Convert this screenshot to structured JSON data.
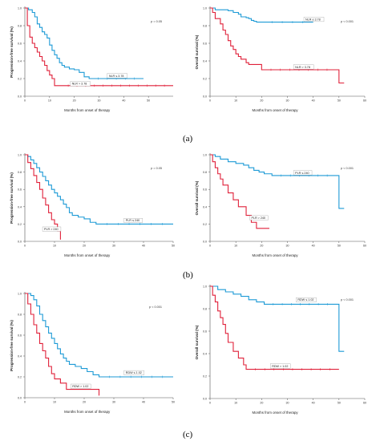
{
  "panel_labels": [
    "(a)",
    "(b)",
    "(c)"
  ],
  "colors": {
    "blue": "#1c9ad6",
    "red": "#e0213a"
  },
  "chart_data": [
    {
      "type": "line",
      "id": "a_pfs",
      "xlabel": "Months from onset of therapy",
      "ylabel": "Progression-free survival (%)",
      "xlim": [
        0,
        60
      ],
      "ylim": [
        0,
        1.0
      ],
      "xticks": [
        0,
        10,
        20,
        30,
        40,
        50
      ],
      "yticks": [
        0,
        0.2,
        0.4,
        0.6,
        0.8,
        1.0
      ],
      "xtick_labels": [
        "0",
        "10",
        "20",
        "30",
        "40",
        "50"
      ],
      "ytick_labels": [
        "0.0",
        "0.2",
        "0.4",
        "0.6",
        "0.8",
        "1.0"
      ],
      "pvalue": "p = 0.05",
      "series": [
        {
          "name": "NLR ≤ 3.78",
          "color": "blue",
          "label_at": [
            34,
            0.22
          ],
          "x": [
            0,
            1.5,
            3,
            4,
            5,
            6,
            7,
            8,
            9,
            10,
            11,
            12,
            13,
            14,
            15,
            16,
            18,
            20,
            22,
            24,
            26,
            48
          ],
          "y": [
            1.0,
            0.98,
            0.95,
            0.9,
            0.82,
            0.78,
            0.73,
            0.7,
            0.66,
            0.58,
            0.52,
            0.47,
            0.43,
            0.38,
            0.35,
            0.33,
            0.31,
            0.3,
            0.27,
            0.22,
            0.2,
            0.2
          ]
        },
        {
          "name": "NLR > 3.78",
          "color": "red",
          "label_at": [
            19,
            0.13
          ],
          "x": [
            0,
            1,
            2,
            3,
            4,
            5,
            6,
            7,
            8,
            9,
            10,
            11,
            12,
            14,
            60
          ],
          "y": [
            1.0,
            0.8,
            0.67,
            0.6,
            0.55,
            0.5,
            0.45,
            0.4,
            0.35,
            0.29,
            0.24,
            0.2,
            0.12,
            0.12,
            0.12
          ]
        }
      ]
    },
    {
      "type": "line",
      "id": "a_os",
      "xlabel": "Months from onset of therapy",
      "ylabel": "Overall survival (%)",
      "xlim": [
        0,
        60
      ],
      "ylim": [
        0,
        1.0
      ],
      "xticks": [
        0,
        10,
        20,
        30,
        40,
        50,
        60
      ],
      "yticks": [
        0,
        0.2,
        0.4,
        0.6,
        0.8,
        1.0
      ],
      "xtick_labels": [
        "0",
        "10",
        "20",
        "30",
        "40",
        "50",
        "60"
      ],
      "ytick_labels": [
        "0.0",
        "0.2",
        "0.4",
        "0.6",
        "0.8",
        "1.0"
      ],
      "pvalue": "p < 0.001",
      "series": [
        {
          "name": "NLR ≤ 3.78",
          "color": "blue",
          "label_at": [
            37,
            0.86
          ],
          "x": [
            0,
            2,
            7,
            9,
            11,
            12,
            14,
            15,
            16,
            17,
            18,
            20,
            40
          ],
          "y": [
            1.0,
            0.98,
            0.97,
            0.95,
            0.93,
            0.9,
            0.89,
            0.88,
            0.86,
            0.85,
            0.84,
            0.84,
            0.84
          ]
        },
        {
          "name": "NLR > 3.78",
          "color": "red",
          "label_at": [
            33,
            0.32
          ],
          "x": [
            0,
            1,
            2,
            4,
            5,
            6,
            7,
            8,
            9,
            10,
            11,
            12,
            14,
            15,
            16,
            20,
            49,
            50,
            52
          ],
          "y": [
            1.0,
            0.95,
            0.88,
            0.82,
            0.75,
            0.7,
            0.63,
            0.57,
            0.53,
            0.48,
            0.45,
            0.42,
            0.38,
            0.36,
            0.36,
            0.3,
            0.3,
            0.15,
            0.15
          ]
        }
      ]
    },
    {
      "type": "line",
      "id": "b_pfs",
      "xlabel": "Months from onset of therapy",
      "ylabel": "Progression-free survival (%)",
      "xlim": [
        0,
        50
      ],
      "ylim": [
        0,
        1.0
      ],
      "xticks": [
        0,
        10,
        20,
        30,
        40,
        50
      ],
      "yticks": [
        0,
        0.2,
        0.4,
        0.6,
        0.8,
        1.0
      ],
      "xtick_labels": [
        "0",
        "10",
        "20",
        "30",
        "40",
        "50"
      ],
      "ytick_labels": [
        "0.0",
        "0.2",
        "0.4",
        "0.6",
        "0.8",
        "1.0"
      ],
      "pvalue": "p = 0.05",
      "series": [
        {
          "name": "PLR ≤ 240",
          "color": "blue",
          "label_at": [
            34,
            0.23
          ],
          "x": [
            0,
            1,
            2,
            3,
            4,
            5,
            6,
            7,
            8,
            9,
            10,
            11,
            12,
            13,
            14,
            15,
            16,
            18,
            20,
            22,
            24,
            50
          ],
          "y": [
            1.0,
            0.98,
            0.94,
            0.9,
            0.85,
            0.8,
            0.75,
            0.7,
            0.65,
            0.6,
            0.56,
            0.52,
            0.48,
            0.43,
            0.39,
            0.33,
            0.3,
            0.28,
            0.26,
            0.22,
            0.2,
            0.2
          ]
        },
        {
          "name": "PLR > 240",
          "color": "red",
          "label_at": [
            6.5,
            0.13
          ],
          "x": [
            0,
            1,
            2,
            3,
            4,
            5,
            6,
            7,
            8,
            9,
            10,
            11,
            12
          ],
          "y": [
            1.0,
            0.91,
            0.84,
            0.76,
            0.68,
            0.6,
            0.5,
            0.42,
            0.33,
            0.25,
            0.2,
            0.12,
            0.02
          ]
        }
      ]
    },
    {
      "type": "line",
      "id": "b_os",
      "xlabel": "Months from onset of therapy",
      "ylabel": "Overall survival (%)",
      "xlim": [
        0,
        60
      ],
      "ylim": [
        0,
        1.0
      ],
      "xticks": [
        0,
        10,
        20,
        30,
        40,
        50,
        60
      ],
      "yticks": [
        0,
        0.2,
        0.4,
        0.6,
        0.8,
        1.0
      ],
      "xtick_labels": [
        "0",
        "10",
        "20",
        "30",
        "40",
        "50",
        "60"
      ],
      "ytick_labels": [
        "0.0",
        "0.2",
        "0.4",
        "0.6",
        "0.8",
        "1.0"
      ],
      "pvalue": "p < 0.001",
      "series": [
        {
          "name": "PLR ≤ 240",
          "color": "blue",
          "label_at": [
            33,
            0.78
          ],
          "x": [
            0,
            2,
            4,
            7,
            10,
            13,
            15,
            17,
            19,
            21,
            24,
            49,
            50,
            52
          ],
          "y": [
            1.0,
            0.98,
            0.95,
            0.92,
            0.9,
            0.88,
            0.85,
            0.82,
            0.8,
            0.78,
            0.76,
            0.76,
            0.38,
            0.38
          ]
        },
        {
          "name": "PLR > 240",
          "color": "red",
          "label_at": [
            16,
            0.26
          ],
          "x": [
            0,
            1,
            2,
            3,
            4,
            5,
            7,
            9,
            11,
            14,
            16,
            18,
            23
          ],
          "y": [
            1.0,
            0.92,
            0.85,
            0.78,
            0.72,
            0.65,
            0.56,
            0.48,
            0.4,
            0.3,
            0.22,
            0.15,
            0.15
          ]
        }
      ]
    },
    {
      "type": "line",
      "id": "c_pfs",
      "xlabel": "Months from onset of therapy",
      "ylabel": "Progression-free survival (%)",
      "xlim": [
        0,
        50
      ],
      "ylim": [
        0,
        1.0
      ],
      "xticks": [
        0,
        10,
        20,
        30,
        40,
        50
      ],
      "yticks": [
        0,
        0.2,
        0.4,
        0.6,
        0.8,
        1.0
      ],
      "xtick_labels": [
        "0",
        "10",
        "20",
        "30",
        "40",
        "50"
      ],
      "ytick_labels": [
        "0.0",
        "0.2",
        "0.4",
        "0.6",
        "0.8",
        "1.0"
      ],
      "pvalue": "p < 0.001",
      "series": [
        {
          "name": "RDW ≤ 1.02",
          "color": "blue",
          "label_at": [
            34,
            0.23
          ],
          "x": [
            0,
            2,
            3,
            4,
            5,
            6,
            7,
            8,
            9,
            10,
            11,
            12,
            13,
            14,
            15,
            17,
            19,
            21,
            23,
            25,
            50
          ],
          "y": [
            1.0,
            0.98,
            0.94,
            0.88,
            0.8,
            0.74,
            0.68,
            0.62,
            0.57,
            0.52,
            0.47,
            0.42,
            0.38,
            0.35,
            0.32,
            0.3,
            0.28,
            0.25,
            0.22,
            0.2,
            0.2
          ]
        },
        {
          "name": "RDW > 1.02",
          "color": "red",
          "label_at": [
            16,
            0.1
          ],
          "x": [
            0,
            1,
            2,
            3,
            4,
            5,
            6,
            7,
            8,
            9,
            10,
            12,
            14,
            17,
            20,
            25
          ],
          "y": [
            1.0,
            0.9,
            0.8,
            0.7,
            0.62,
            0.52,
            0.45,
            0.38,
            0.3,
            0.23,
            0.18,
            0.14,
            0.08,
            0.08,
            0.08,
            0.02
          ]
        }
      ]
    },
    {
      "type": "line",
      "id": "c_os",
      "xlabel": "Months from onset of therapy",
      "ylabel": "Overall survival (%)",
      "xlim": [
        0,
        60
      ],
      "ylim": [
        0,
        1.0
      ],
      "xticks": [
        0,
        10,
        20,
        30,
        40,
        50,
        60
      ],
      "yticks": [
        0,
        0.2,
        0.4,
        0.6,
        0.8,
        1.0
      ],
      "xtick_labels": [
        "0",
        "10",
        "20",
        "30",
        "40",
        "50",
        "60"
      ],
      "ytick_labels": [
        "0.0",
        "0.2",
        "0.4",
        "0.6",
        "0.8",
        "1.0"
      ],
      "pvalue": "p < 0.001",
      "series": [
        {
          "name": "RDW ≤ 1.02",
          "color": "blue",
          "label_at": [
            34,
            0.87
          ],
          "x": [
            0,
            3,
            6,
            9,
            12,
            15,
            18,
            21,
            49,
            50,
            52
          ],
          "y": [
            1.0,
            0.97,
            0.95,
            0.93,
            0.91,
            0.88,
            0.86,
            0.84,
            0.84,
            0.42,
            0.42
          ]
        },
        {
          "name": "RDW > 1.02",
          "color": "red",
          "label_at": [
            24,
            0.28
          ],
          "x": [
            0,
            1,
            2,
            3,
            4,
            5,
            6,
            7,
            9,
            11,
            13,
            14,
            50
          ],
          "y": [
            1.0,
            0.92,
            0.86,
            0.78,
            0.72,
            0.66,
            0.58,
            0.5,
            0.42,
            0.36,
            0.3,
            0.26,
            0.26
          ]
        }
      ]
    }
  ]
}
